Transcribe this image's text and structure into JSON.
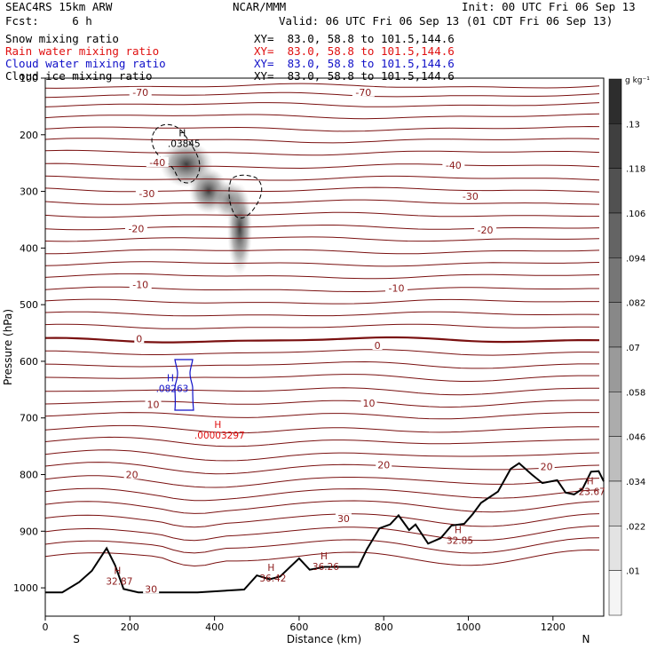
{
  "header": {
    "model": "SEAC4RS 15km ARW",
    "fcst": "Fcst:     6 h",
    "center": "NCAR/MMM",
    "init": "Init: 00 UTC Fri 06 Sep 13",
    "valid": "Valid: 06 UTC Fri 06 Sep 13 (01 CDT Fri 06 Sep 13)"
  },
  "legend": [
    {
      "name": "Snow mixing ratio",
      "xy": "XY=  83.0, 58.8 to 101.5,144.6",
      "color": "#000000"
    },
    {
      "name": "Rain water mixing ratio",
      "xy": "XY=  83.0, 58.8 to 101.5,144.6",
      "color": "#e01010"
    },
    {
      "name": "Cloud water mixing ratio",
      "xy": "XY=  83.0, 58.8 to 101.5,144.6",
      "color": "#1010c8"
    },
    {
      "name": "Cloud ice mixing ratio",
      "xy": "XY=  83.0, 58.8 to 101.5,144.6",
      "color": "#000000"
    }
  ],
  "colorbar": {
    "unit": "g kg⁻¹",
    "labels": [
      "0.13",
      ".118",
      ".106",
      ".094",
      ".082",
      ".07",
      ".058",
      ".046",
      ".034",
      ".022",
      ".01"
    ],
    "display_labels": [
      ".13",
      ".118",
      ".106",
      ".094",
      ".082",
      ".07",
      ".058",
      ".046",
      ".034",
      ".022",
      ".01"
    ]
  },
  "chart_data": {
    "type": "contour-cross-section",
    "xlabel": "Distance (km)",
    "ylabel": "Pressure (hPa)",
    "xlim": [
      0,
      1320
    ],
    "ylim": [
      1050,
      100
    ],
    "xticks": [
      0,
      200,
      400,
      600,
      800,
      1000,
      1200
    ],
    "yticks": [
      100,
      200,
      300,
      400,
      500,
      600,
      700,
      800,
      900,
      1000
    ],
    "x_end_labels": {
      "left": "S",
      "right": "N"
    },
    "temperature_label_values": [
      -70,
      -40,
      -30,
      -20,
      -10,
      0,
      10,
      20,
      30
    ],
    "temperature_labels": [
      {
        "text": "-70",
        "x": 225,
        "p": 128
      },
      {
        "text": "-70",
        "x": 752,
        "p": 128
      },
      {
        "text": "-40",
        "x": 265,
        "p": 252
      },
      {
        "text": "-40",
        "x": 965,
        "p": 257
      },
      {
        "text": "-30",
        "x": 240,
        "p": 307
      },
      {
        "text": "-30",
        "x": 1005,
        "p": 312
      },
      {
        "text": "-20",
        "x": 215,
        "p": 369
      },
      {
        "text": "-20",
        "x": 1040,
        "p": 371
      },
      {
        "text": "-10",
        "x": 225,
        "p": 468
      },
      {
        "text": "-10",
        "x": 830,
        "p": 474
      },
      {
        "text": "0",
        "x": 222,
        "p": 563
      },
      {
        "text": "0",
        "x": 785,
        "p": 575
      },
      {
        "text": "10",
        "x": 255,
        "p": 679
      },
      {
        "text": "10",
        "x": 765,
        "p": 677
      },
      {
        "text": "20",
        "x": 205,
        "p": 803
      },
      {
        "text": "20",
        "x": 800,
        "p": 786
      },
      {
        "text": "20",
        "x": 1185,
        "p": 789
      },
      {
        "text": "30",
        "x": 705,
        "p": 881
      },
      {
        "text": "30",
        "x": 250,
        "p": 1005
      }
    ],
    "maxima": [
      {
        "text": ".03845",
        "x": 328,
        "p": 218,
        "color": "#000000"
      },
      {
        "text": ".08263",
        "x": 300,
        "p": 651,
        "color": "#1010c8"
      },
      {
        "text": ".00003297",
        "x": 412,
        "p": 733,
        "color": "#e01010"
      },
      {
        "text": "32.87",
        "x": 175,
        "p": 991,
        "color": "#8b1a1a"
      },
      {
        "text": "36.42",
        "x": 538,
        "p": 986,
        "color": "#8b1a1a"
      },
      {
        "text": "36.26",
        "x": 663,
        "p": 965,
        "color": "#8b1a1a"
      },
      {
        "text": "32.85",
        "x": 980,
        "p": 919,
        "color": "#8b1a1a"
      },
      {
        "text": "23.67",
        "x": 1292,
        "p": 833,
        "color": "#8b1a1a"
      }
    ],
    "terrain": [
      [
        0,
        1008
      ],
      [
        40,
        1008
      ],
      [
        80,
        990
      ],
      [
        110,
        970
      ],
      [
        145,
        930
      ],
      [
        165,
        960
      ],
      [
        185,
        1002
      ],
      [
        220,
        1008
      ],
      [
        360,
        1008
      ],
      [
        470,
        1003
      ],
      [
        500,
        978
      ],
      [
        530,
        985
      ],
      [
        555,
        980
      ],
      [
        600,
        948
      ],
      [
        625,
        968
      ],
      [
        660,
        963
      ],
      [
        740,
        963
      ],
      [
        760,
        932
      ],
      [
        790,
        895
      ],
      [
        815,
        888
      ],
      [
        835,
        872
      ],
      [
        860,
        898
      ],
      [
        875,
        888
      ],
      [
        905,
        922
      ],
      [
        935,
        912
      ],
      [
        960,
        890
      ],
      [
        990,
        887
      ],
      [
        1010,
        870
      ],
      [
        1030,
        850
      ],
      [
        1070,
        830
      ],
      [
        1100,
        790
      ],
      [
        1120,
        780
      ],
      [
        1150,
        800
      ],
      [
        1175,
        815
      ],
      [
        1210,
        810
      ],
      [
        1230,
        832
      ],
      [
        1250,
        835
      ],
      [
        1270,
        825
      ],
      [
        1290,
        795
      ],
      [
        1308,
        794
      ],
      [
        1320,
        812
      ]
    ]
  }
}
